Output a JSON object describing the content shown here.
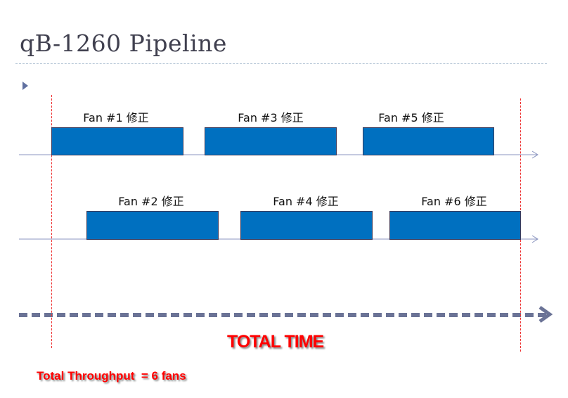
{
  "title": "qB-1260 Pipeline",
  "rows": [
    {
      "fans": [
        "Fan #1 修正",
        "Fan #3 修正",
        "Fan #5 修正"
      ]
    },
    {
      "fans": [
        "Fan #2 修正",
        "Fan #4 修正",
        "Fan #6 修正"
      ]
    }
  ],
  "total_time_label": "TOTAL TIME",
  "throughput_label": "Total Throughput  = 6 fans",
  "colors": {
    "bar": "#0070c0",
    "highlight": "#ff0000",
    "arrow": "#6b7396"
  }
}
